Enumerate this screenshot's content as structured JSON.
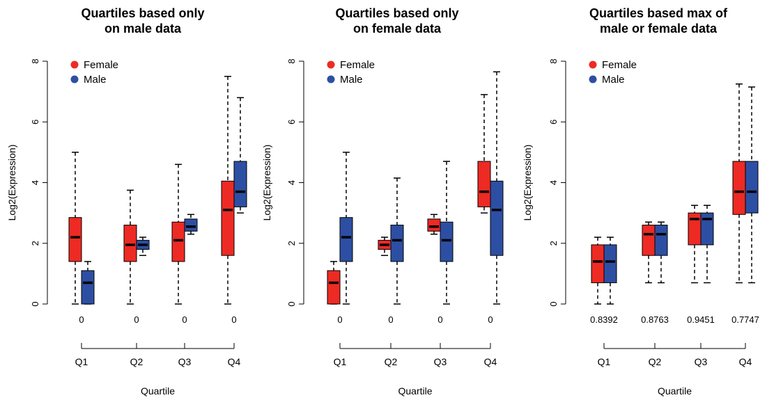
{
  "colors": {
    "female": "#ee2a24",
    "male": "#2d4fa3",
    "median": "#000000"
  },
  "chart_data": [
    {
      "type": "box",
      "title": "Quartiles based only\non male data",
      "xlabel": "Quartile",
      "ylabel": "Log2(Expression)",
      "ylim": [
        0,
        8
      ],
      "yticks": [
        "0",
        "2",
        "4",
        "6",
        "8"
      ],
      "categories": [
        "Q1",
        "Q2",
        "Q3",
        "Q4"
      ],
      "pvalues": [
        "0",
        "0",
        "0",
        "0"
      ],
      "legend": {
        "position": "top-left",
        "entries": [
          "Female",
          "Male"
        ]
      },
      "series": [
        {
          "name": "Female",
          "boxes": [
            {
              "min": 0.0,
              "q1": 1.4,
              "median": 2.2,
              "q3": 2.85,
              "max": 5.0
            },
            {
              "min": 0.0,
              "q1": 1.4,
              "median": 1.95,
              "q3": 2.6,
              "max": 3.75
            },
            {
              "min": 0.0,
              "q1": 1.4,
              "median": 2.1,
              "q3": 2.7,
              "max": 4.6
            },
            {
              "min": 0.0,
              "q1": 1.6,
              "median": 3.1,
              "q3": 4.05,
              "max": 7.5
            }
          ]
        },
        {
          "name": "Male",
          "boxes": [
            {
              "min": 0.0,
              "q1": 0.0,
              "median": 0.7,
              "q3": 1.1,
              "max": 1.4
            },
            {
              "min": 1.6,
              "q1": 1.8,
              "median": 1.95,
              "q3": 2.1,
              "max": 2.2
            },
            {
              "min": 2.3,
              "q1": 2.4,
              "median": 2.55,
              "q3": 2.8,
              "max": 2.95
            },
            {
              "min": 3.0,
              "q1": 3.2,
              "median": 3.7,
              "q3": 4.7,
              "max": 6.8
            }
          ]
        }
      ]
    },
    {
      "type": "box",
      "title": "Quartiles based only\non female data",
      "xlabel": "Quartile",
      "ylabel": "Log2(Expression)",
      "ylim": [
        0,
        8
      ],
      "yticks": [
        "0",
        "2",
        "4",
        "6",
        "8"
      ],
      "categories": [
        "Q1",
        "Q2",
        "Q3",
        "Q4"
      ],
      "pvalues": [
        "0",
        "0",
        "0",
        "0"
      ],
      "legend": {
        "position": "top-left",
        "entries": [
          "Female",
          "Male"
        ]
      },
      "series": [
        {
          "name": "Female",
          "boxes": [
            {
              "min": 0.0,
              "q1": 0.0,
              "median": 0.7,
              "q3": 1.1,
              "max": 1.4
            },
            {
              "min": 1.6,
              "q1": 1.8,
              "median": 1.95,
              "q3": 2.1,
              "max": 2.2
            },
            {
              "min": 2.3,
              "q1": 2.4,
              "median": 2.55,
              "q3": 2.8,
              "max": 2.95
            },
            {
              "min": 3.0,
              "q1": 3.2,
              "median": 3.7,
              "q3": 4.7,
              "max": 6.9
            }
          ]
        },
        {
          "name": "Male",
          "boxes": [
            {
              "min": 0.0,
              "q1": 1.4,
              "median": 2.2,
              "q3": 2.85,
              "max": 5.0
            },
            {
              "min": 0.0,
              "q1": 1.4,
              "median": 2.1,
              "q3": 2.6,
              "max": 4.15
            },
            {
              "min": 0.0,
              "q1": 1.4,
              "median": 2.1,
              "q3": 2.7,
              "max": 4.7
            },
            {
              "min": 0.0,
              "q1": 1.6,
              "median": 3.1,
              "q3": 4.05,
              "max": 7.65
            }
          ]
        }
      ]
    },
    {
      "type": "box",
      "title": "Quartiles based max of\nmale or female data",
      "xlabel": "Quartile",
      "ylabel": "Log2(Expression)",
      "ylim": [
        0,
        8
      ],
      "yticks": [
        "0",
        "2",
        "4",
        "6",
        "8"
      ],
      "categories": [
        "Q1",
        "Q2",
        "Q3",
        "Q4"
      ],
      "pvalues": [
        "0.8392",
        "0.8763",
        "0.9451",
        "0.7747"
      ],
      "legend": {
        "position": "top-left",
        "entries": [
          "Female",
          "Male"
        ]
      },
      "series": [
        {
          "name": "Female",
          "boxes": [
            {
              "min": 0.0,
              "q1": 0.7,
              "median": 1.4,
              "q3": 1.95,
              "max": 2.2
            },
            {
              "min": 0.7,
              "q1": 1.6,
              "median": 2.3,
              "q3": 2.6,
              "max": 2.7
            },
            {
              "min": 0.7,
              "q1": 1.95,
              "median": 2.8,
              "q3": 3.0,
              "max": 3.25
            },
            {
              "min": 0.7,
              "q1": 2.95,
              "median": 3.7,
              "q3": 4.7,
              "max": 7.25
            }
          ]
        },
        {
          "name": "Male",
          "boxes": [
            {
              "min": 0.0,
              "q1": 0.7,
              "median": 1.4,
              "q3": 1.95,
              "max": 2.2
            },
            {
              "min": 0.7,
              "q1": 1.6,
              "median": 2.3,
              "q3": 2.6,
              "max": 2.7
            },
            {
              "min": 0.7,
              "q1": 1.95,
              "median": 2.8,
              "q3": 3.0,
              "max": 3.25
            },
            {
              "min": 0.7,
              "q1": 3.0,
              "median": 3.7,
              "q3": 4.7,
              "max": 7.15
            }
          ]
        }
      ]
    }
  ]
}
